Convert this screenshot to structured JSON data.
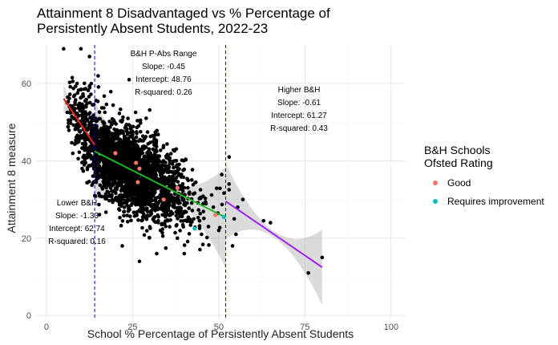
{
  "chart_data": {
    "type": "scatter",
    "title_lines": [
      "Attainment 8 Disadvantaged vs % Percentage of",
      "Persistently Absent Students, 2022-23"
    ],
    "xlabel": "School % Percentage of Persistently Absent Students",
    "ylabel": "Attainment 8 measure",
    "xlim": [
      -3,
      104
    ],
    "ylim": [
      -1,
      70
    ],
    "x_ticks": [
      0,
      25,
      50,
      75,
      100
    ],
    "y_ticks": [
      0,
      20,
      40,
      60
    ],
    "grid": true,
    "legend": {
      "title_lines": [
        "B&H Schools",
        "Ofsted Rating"
      ],
      "position": "right",
      "items": [
        {
          "label": "Good",
          "color": "#F8766D"
        },
        {
          "label": "Requires improvement",
          "color": "#00BFC4"
        }
      ]
    },
    "vlines": [
      {
        "x": 14,
        "color": "#0000CC",
        "style": "dashed"
      },
      {
        "x": 52,
        "color": "#0000CC",
        "style": "dashed"
      }
    ],
    "fits": [
      {
        "name": "Lower B&H",
        "slope": -1.33,
        "intercept": 62.74,
        "r_squared": 0.16,
        "x_range": [
          5,
          14
        ],
        "color": "#E8241C",
        "annotation": [
          "Lower B&H",
          "Slope: -1.33",
          "Intercept: 62.74",
          "R-squared: 0.16"
        ]
      },
      {
        "name": "B&H P-Abs Range",
        "slope": -0.45,
        "intercept": 48.76,
        "r_squared": 0.26,
        "x_range": [
          14,
          52
        ],
        "color": "#1DB71D",
        "annotation": [
          "B&H P-Abs Range",
          "Slope: -0.45",
          "Intercept: 48.76",
          "R-squared: 0.26"
        ]
      },
      {
        "name": "Higher B&H",
        "slope": -0.61,
        "intercept": 61.27,
        "r_squared": 0.43,
        "x_range": [
          52,
          80
        ],
        "color": "#A020F0",
        "annotation": [
          "Higher B&H",
          "Slope: -0.61",
          "Intercept: 61.27",
          "R-squared: 0.43"
        ]
      }
    ],
    "highlighted_points": [
      {
        "x": 20,
        "y": 42,
        "rating": "Good"
      },
      {
        "x": 26,
        "y": 39.5,
        "rating": "Good"
      },
      {
        "x": 27,
        "y": 38,
        "rating": "Good"
      },
      {
        "x": 26.5,
        "y": 34.5,
        "rating": "Good"
      },
      {
        "x": 34,
        "y": 30,
        "rating": "Good"
      },
      {
        "x": 38,
        "y": 33,
        "rating": "Good"
      },
      {
        "x": 49,
        "y": 26,
        "rating": "Good"
      },
      {
        "x": 43,
        "y": 22.5,
        "rating": "Requires improvement"
      },
      {
        "x": 51.5,
        "y": 25.5,
        "rating": "Requires improvement"
      }
    ],
    "outlier_points": [
      {
        "x": 5,
        "y": 69
      },
      {
        "x": 10,
        "y": 69
      },
      {
        "x": 24,
        "y": 61
      },
      {
        "x": 15,
        "y": 62
      },
      {
        "x": 12.5,
        "y": 67
      },
      {
        "x": 13,
        "y": 60
      },
      {
        "x": 6,
        "y": 55
      },
      {
        "x": 53,
        "y": 41
      },
      {
        "x": 53,
        "y": 34
      },
      {
        "x": 57,
        "y": 30
      },
      {
        "x": 55.5,
        "y": 28
      },
      {
        "x": 54.5,
        "y": 25
      },
      {
        "x": 55,
        "y": 21
      },
      {
        "x": 54,
        "y": 18
      },
      {
        "x": 63,
        "y": 24.5
      },
      {
        "x": 65,
        "y": 24
      },
      {
        "x": 76,
        "y": 11
      },
      {
        "x": 80,
        "y": 15
      },
      {
        "x": 27,
        "y": 14
      },
      {
        "x": 32,
        "y": 16
      },
      {
        "x": 40,
        "y": 16
      },
      {
        "x": 22,
        "y": 18
      },
      {
        "x": 47,
        "y": 23
      },
      {
        "x": 45,
        "y": 21
      },
      {
        "x": 50,
        "y": 22
      },
      {
        "x": 38,
        "y": 20
      }
    ]
  }
}
